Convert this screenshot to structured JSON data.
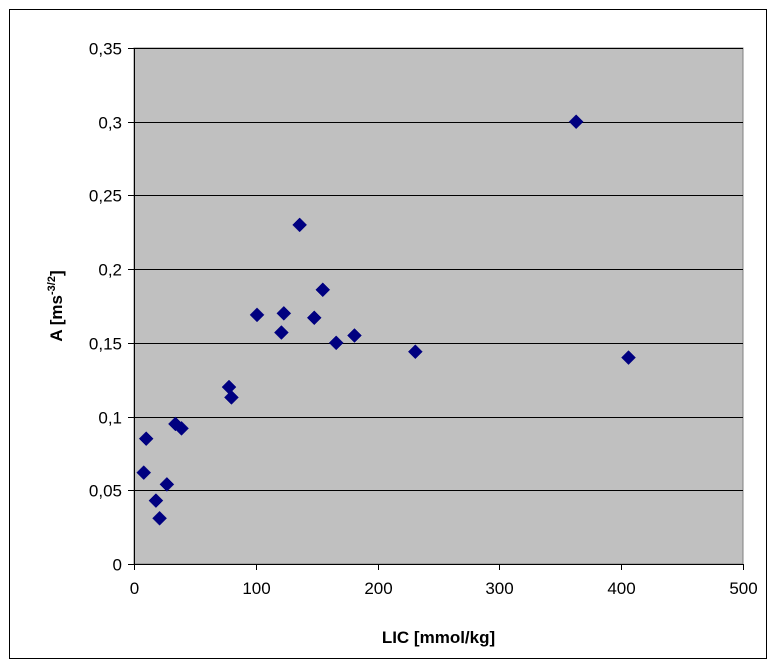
{
  "chart_data": {
    "type": "scatter",
    "xlabel": "LIC [mmol/kg]",
    "ylabel": {
      "base": "A [ms",
      "sup": "-3/2",
      "end": "]"
    },
    "xlim": [
      0,
      500
    ],
    "ylim": [
      0,
      0.35
    ],
    "x_ticks": [
      0,
      100,
      200,
      300,
      400,
      500
    ],
    "x_tick_labels": [
      "0",
      "100",
      "200",
      "300",
      "400",
      "500"
    ],
    "y_ticks": [
      0,
      0.05,
      0.1,
      0.15,
      0.2,
      0.25,
      0.3,
      0.35
    ],
    "y_tick_labels": [
      "0",
      "0,05",
      "0,1",
      "0,15",
      "0,2",
      "0,25",
      "0,3",
      "0,35"
    ],
    "grid": {
      "horizontal": true,
      "vertical": false
    },
    "plot_background": "#c0c0c0",
    "marker": {
      "shape": "diamond",
      "color": "#000080"
    },
    "points": [
      {
        "x": 8,
        "y": 0.062
      },
      {
        "x": 10,
        "y": 0.085
      },
      {
        "x": 18,
        "y": 0.043
      },
      {
        "x": 21,
        "y": 0.031
      },
      {
        "x": 27,
        "y": 0.054
      },
      {
        "x": 34,
        "y": 0.095
      },
      {
        "x": 39,
        "y": 0.092
      },
      {
        "x": 78,
        "y": 0.12
      },
      {
        "x": 80,
        "y": 0.113
      },
      {
        "x": 101,
        "y": 0.169
      },
      {
        "x": 121,
        "y": 0.157
      },
      {
        "x": 123,
        "y": 0.17
      },
      {
        "x": 136,
        "y": 0.23
      },
      {
        "x": 148,
        "y": 0.167
      },
      {
        "x": 155,
        "y": 0.186
      },
      {
        "x": 166,
        "y": 0.15
      },
      {
        "x": 181,
        "y": 0.155
      },
      {
        "x": 231,
        "y": 0.144
      },
      {
        "x": 363,
        "y": 0.3
      },
      {
        "x": 406,
        "y": 0.14
      }
    ]
  }
}
